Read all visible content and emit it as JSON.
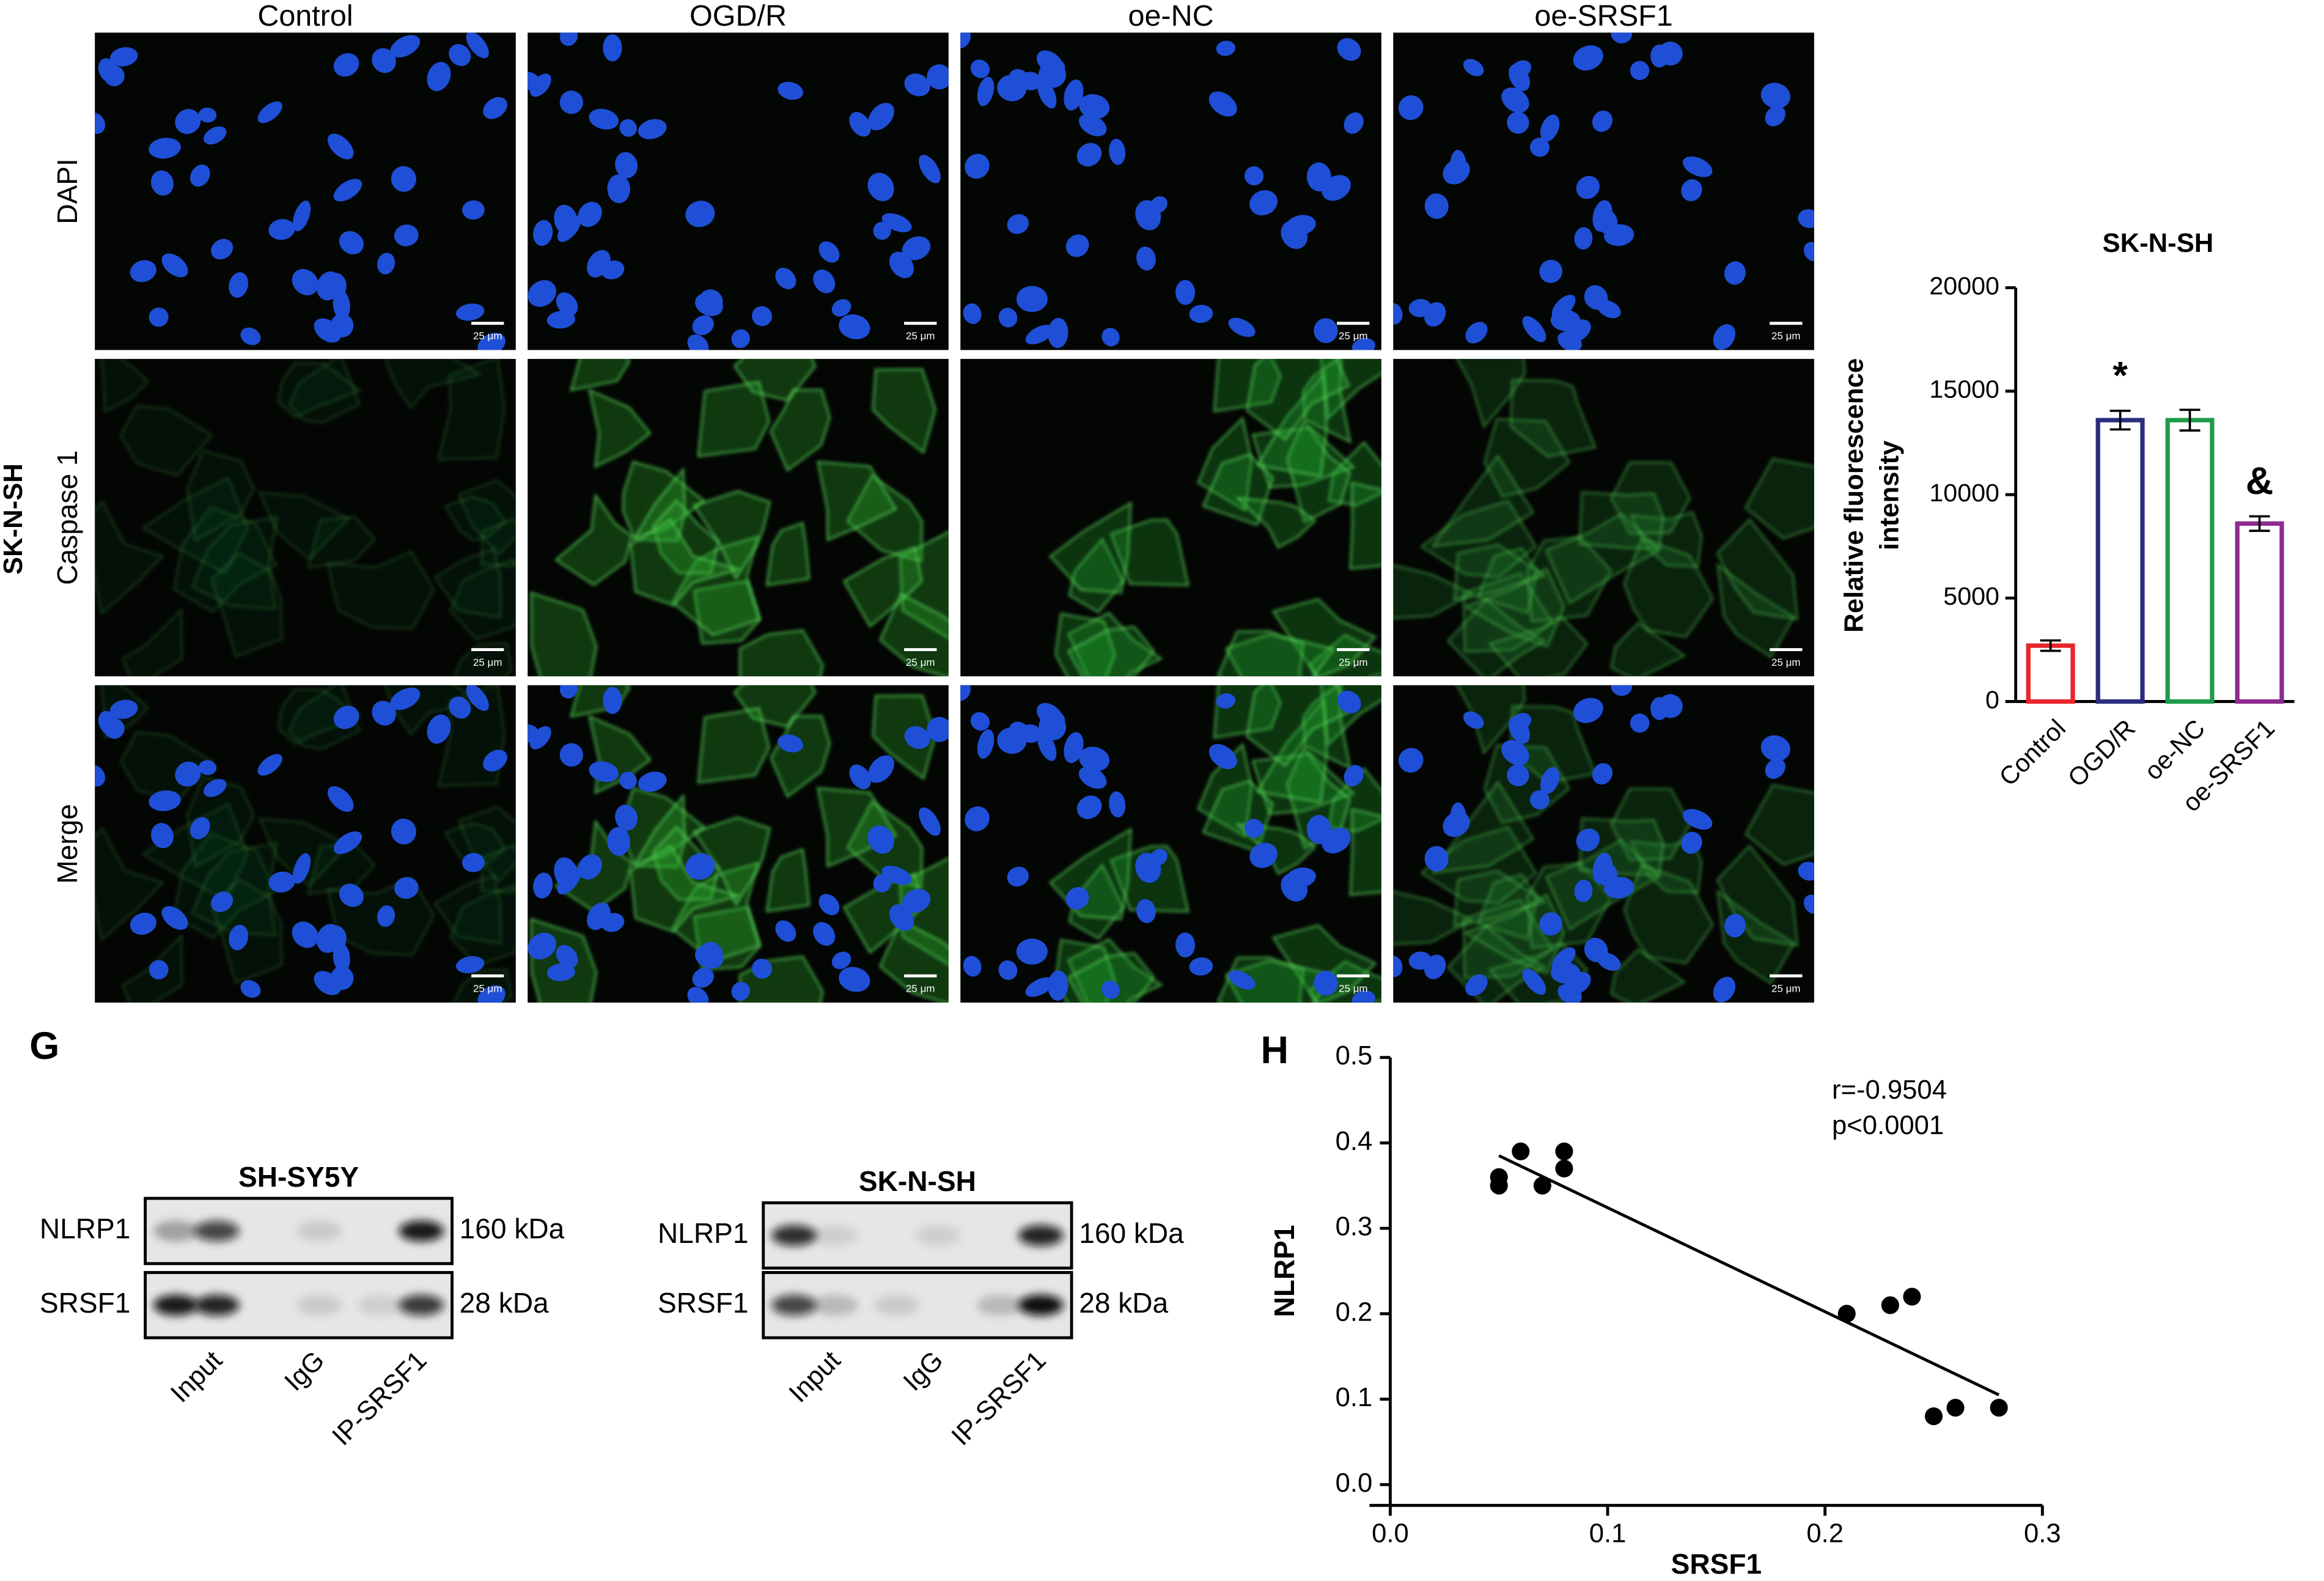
{
  "panel_labels": [
    "G",
    "H"
  ],
  "microscopy": {
    "cell_line": "SK-N-SH",
    "columns": [
      "Control",
      "OGD/R",
      "oe-NC",
      "oe-SRSF1"
    ],
    "rows": [
      "DAPI",
      "Caspase 1",
      "Merge"
    ],
    "scale_bar": "25 μm"
  },
  "blots": [
    {
      "title": "SH-SY5Y",
      "rows": [
        {
          "label": "NLRP1",
          "size": "160 kDa"
        },
        {
          "label": "SRSF1",
          "size": "28 kDa"
        }
      ],
      "lanes": [
        "Input",
        "IgG",
        "IP-SRSF1"
      ]
    },
    {
      "title": "SK-N-SH",
      "rows": [
        {
          "label": "NLRP1",
          "size": "160 kDa"
        },
        {
          "label": "SRSF1",
          "size": "28 kDa"
        }
      ],
      "lanes": [
        "Input",
        "IgG",
        "IP-SRSF1"
      ]
    }
  ],
  "chart_data": [
    {
      "type": "bar",
      "title": "SK-N-SH",
      "ylabel": [
        "Relative fluorescence",
        "intensity"
      ],
      "categories": [
        "Control",
        "OGD/R",
        "oe-NC",
        "oe-SRSF1"
      ],
      "values": [
        2700,
        13600,
        13600,
        8600
      ],
      "errors": [
        250,
        450,
        500,
        350
      ],
      "colors": [
        "#e8262b",
        "#2b2e7e",
        "#1f9b4a",
        "#8e2b91"
      ],
      "annotations": [
        null,
        "*",
        null,
        "&"
      ],
      "ylim": [
        0,
        20000
      ],
      "yticks": [
        0,
        5000,
        10000,
        15000,
        20000
      ]
    },
    {
      "type": "scatter",
      "xlabel": "SRSF1",
      "ylabel": "NLRP1",
      "annotations": [
        "r=-0.9504",
        "p<0.0001"
      ],
      "x": [
        0.05,
        0.05,
        0.06,
        0.07,
        0.08,
        0.08,
        0.21,
        0.23,
        0.24,
        0.25,
        0.26,
        0.28
      ],
      "y": [
        0.35,
        0.36,
        0.39,
        0.35,
        0.37,
        0.39,
        0.2,
        0.21,
        0.22,
        0.08,
        0.09,
        0.09
      ],
      "trend_line": {
        "x": [
          0.05,
          0.28
        ],
        "y": [
          0.385,
          0.105
        ]
      },
      "color": "#000000",
      "xlim": [
        0,
        0.3
      ],
      "xticks": [
        {
          "value": 0,
          "label": "0.0"
        },
        0.1,
        0.2,
        0.3
      ],
      "ylim": [
        0,
        0.5
      ],
      "yticks": [
        {
          "value": 0,
          "label": "0.0"
        },
        0.1,
        0.2,
        0.3,
        0.4,
        0.5
      ]
    }
  ]
}
